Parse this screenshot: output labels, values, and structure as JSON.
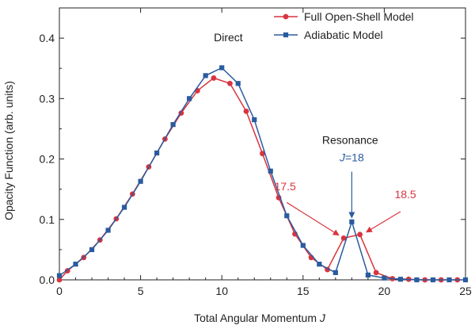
{
  "chart_data": {
    "type": "line",
    "xlabel": "Total Angular Momentum",
    "xlabel_symbol": "J",
    "ylabel": "Opacity Function (arb. units)",
    "xlim": [
      0,
      25
    ],
    "ylim": [
      0,
      0.45
    ],
    "x_ticks": [
      0,
      5,
      10,
      15,
      20,
      25
    ],
    "y_ticks": [
      0.0,
      0.1,
      0.2,
      0.3,
      0.4
    ],
    "x_tick_labels": [
      "0",
      "5",
      "10",
      "15",
      "20",
      "25"
    ],
    "y_tick_labels": [
      "0.0",
      "0.1",
      "0.2",
      "0.3",
      "0.4"
    ],
    "grid": false,
    "legend_position": "top-right",
    "series": [
      {
        "name": "Full Open-Shell Model",
        "color": "#d9343f",
        "marker": "circle",
        "points": [
          [
            0,
            0.0
          ],
          [
            0.5,
            0.015
          ],
          [
            1.5,
            0.037
          ],
          [
            2.5,
            0.066
          ],
          [
            3.5,
            0.101
          ],
          [
            4.5,
            0.142
          ],
          [
            5.5,
            0.187
          ],
          [
            6.5,
            0.233
          ],
          [
            7.5,
            0.276
          ],
          [
            8.5,
            0.313
          ],
          [
            9.5,
            0.334
          ],
          [
            10.5,
            0.325
          ],
          [
            11.5,
            0.279
          ],
          [
            12.5,
            0.209
          ],
          [
            13.5,
            0.136
          ],
          [
            14.5,
            0.076
          ],
          [
            15.5,
            0.037
          ],
          [
            16.5,
            0.017
          ],
          [
            17.5,
            0.069
          ],
          [
            18.5,
            0.075
          ],
          [
            19.5,
            0.012
          ],
          [
            20.5,
            0.002
          ],
          [
            21.5,
            0.001
          ],
          [
            22.5,
            0.0
          ],
          [
            23.5,
            0.0
          ],
          [
            24.5,
            0.0
          ]
        ]
      },
      {
        "name": "Adiabatic Model",
        "color": "#2a5b9e",
        "marker": "square",
        "points": [
          [
            0,
            0.007
          ],
          [
            1,
            0.026
          ],
          [
            2,
            0.05
          ],
          [
            3,
            0.082
          ],
          [
            4,
            0.12
          ],
          [
            5,
            0.163
          ],
          [
            6,
            0.21
          ],
          [
            7,
            0.257
          ],
          [
            8,
            0.3
          ],
          [
            9,
            0.338
          ],
          [
            10,
            0.351
          ],
          [
            11,
            0.325
          ],
          [
            12,
            0.265
          ],
          [
            13,
            0.18
          ],
          [
            14,
            0.106
          ],
          [
            15,
            0.057
          ],
          [
            16,
            0.026
          ],
          [
            17,
            0.012
          ],
          [
            18,
            0.096
          ],
          [
            19,
            0.008
          ],
          [
            20,
            0.003
          ],
          [
            21,
            0.001
          ],
          [
            22,
            0.0
          ],
          [
            23,
            0.0
          ],
          [
            24,
            0.0
          ],
          [
            25,
            0.0
          ]
        ]
      }
    ],
    "annotations": [
      {
        "name": "annotation-direct",
        "text": "Direct",
        "x": 10.4,
        "y": 0.395,
        "color": "#1a1a1a",
        "anchor": "middle"
      },
      {
        "name": "annotation-resonance",
        "text": "Resonance",
        "x": 17.9,
        "y": 0.225,
        "color": "#1a1a1a",
        "anchor": "middle"
      },
      {
        "name": "annotation-j18",
        "text": "=18",
        "prefix_italic": "J",
        "x": 18.0,
        "y": 0.196,
        "color": "#2a5b9e",
        "anchor": "middle"
      },
      {
        "name": "annotation-17-5",
        "text": "17.5",
        "x": 13.9,
        "y": 0.148,
        "color": "#d9343f",
        "anchor": "middle"
      },
      {
        "name": "annotation-18-5",
        "text": "18.5",
        "x": 21.3,
        "y": 0.135,
        "color": "#d9343f",
        "anchor": "middle"
      }
    ],
    "arrows": [
      {
        "name": "arrow-17-5",
        "from": [
          14.0,
          0.128
        ],
        "to": [
          17.2,
          0.074
        ],
        "color": "#d9343f"
      },
      {
        "name": "arrow-j18",
        "from": [
          18.0,
          0.179
        ],
        "to": [
          18.0,
          0.103
        ],
        "color": "#2a5b9e"
      },
      {
        "name": "arrow-18-5",
        "from": [
          21.0,
          0.113
        ],
        "to": [
          18.9,
          0.079
        ],
        "color": "#d9343f"
      }
    ]
  }
}
